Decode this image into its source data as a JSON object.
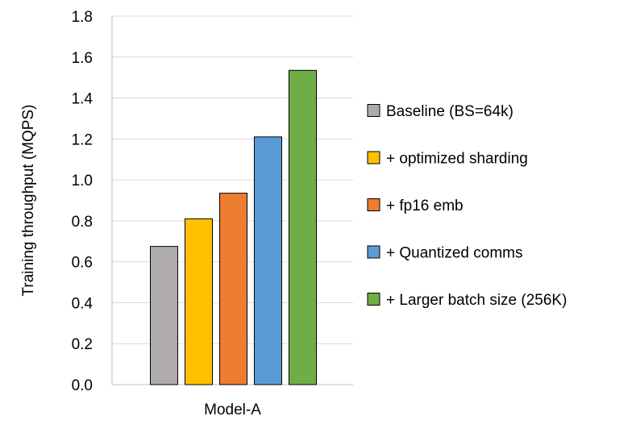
{
  "chart_data": {
    "type": "bar",
    "title": "",
    "xlabel": "",
    "ylabel": "Training throughput (MQPS)",
    "categories": [
      "Model-A"
    ],
    "ylim": [
      0,
      1.8
    ],
    "yticks": [
      "0.0",
      "0.2",
      "0.4",
      "0.6",
      "0.8",
      "1.0",
      "1.2",
      "1.4",
      "1.6",
      "1.8"
    ],
    "grid": true,
    "legend_position": "right",
    "series": [
      {
        "name": "Baseline (BS=64k)",
        "values": [
          0.675
        ],
        "color": "#AFABAB"
      },
      {
        "name": "+ optimized sharding",
        "values": [
          0.81
        ],
        "color": "#FFC000"
      },
      {
        "name": "+ fp16 emb",
        "values": [
          0.935
        ],
        "color": "#ED7D31"
      },
      {
        "name": "+ Quantized comms",
        "values": [
          1.21
        ],
        "color": "#5B9BD5"
      },
      {
        "name": "+ Larger batch size (256K)",
        "values": [
          1.535
        ],
        "color": "#70AD47"
      }
    ]
  }
}
